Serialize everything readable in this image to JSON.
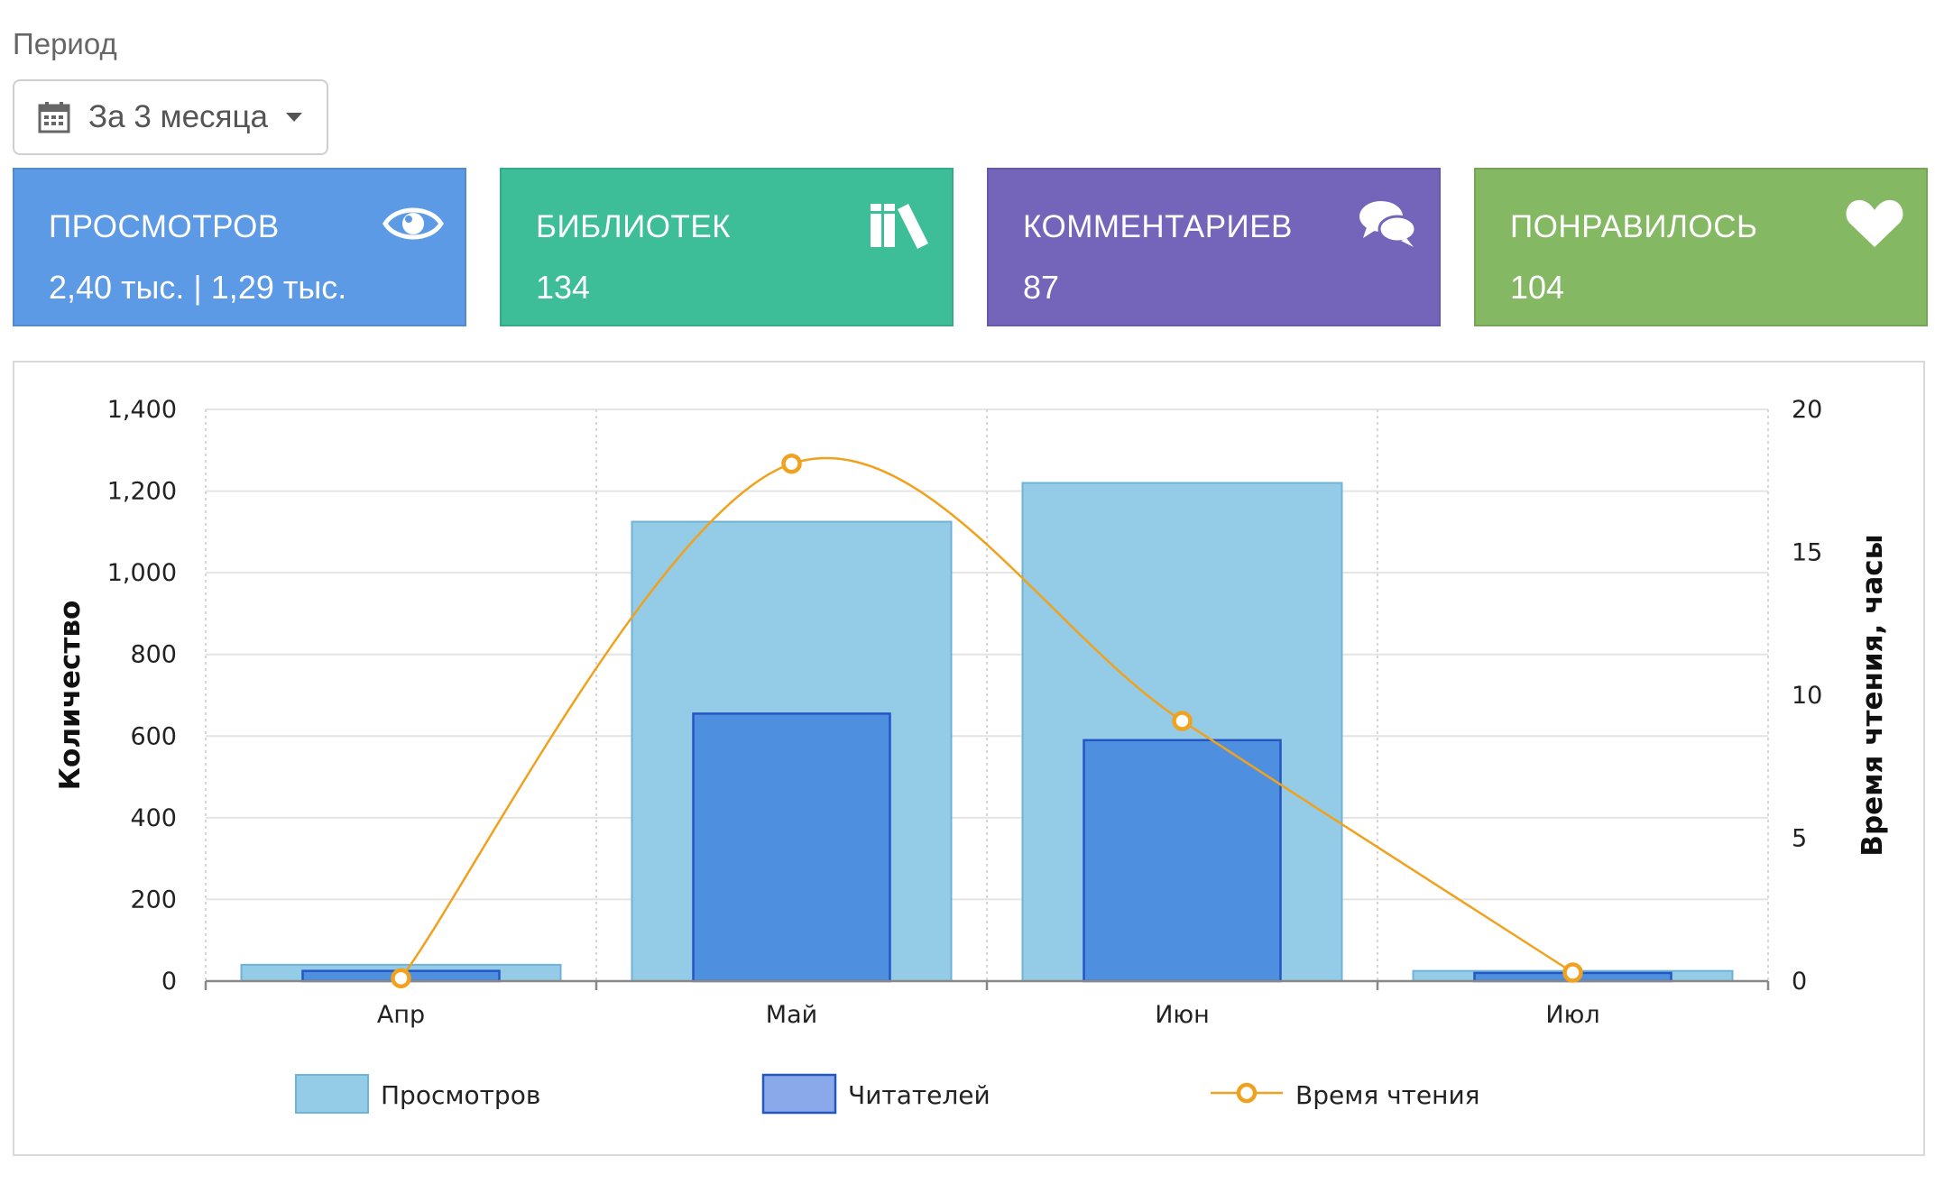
{
  "period": {
    "label": "Период",
    "selected": "За 3 месяца"
  },
  "cards": [
    {
      "title": "ПРОСМОТРОВ",
      "value": "2,40 тыс. | 1,29 тыс.",
      "icon": "eye-icon",
      "color": "#5c9ae6"
    },
    {
      "title": "БИБЛИОТЕК",
      "value": "134",
      "icon": "books-icon",
      "color": "#3dbd98"
    },
    {
      "title": "КОММЕНТАРИЕВ",
      "value": "87",
      "icon": "comments-icon",
      "color": "#7465bb"
    },
    {
      "title": "ПОНРАВИЛОСЬ",
      "value": "104",
      "icon": "heart-icon",
      "color": "#85b863"
    }
  ],
  "chart_data": {
    "type": "bar",
    "categories": [
      "Апр",
      "Май",
      "Июн",
      "Июл"
    ],
    "series": [
      {
        "name": "Просмотров",
        "type": "bar",
        "axis": "left",
        "values": [
          40,
          1125,
          1220,
          25
        ],
        "color": "#94cbe6"
      },
      {
        "name": "Читателей",
        "type": "bar",
        "axis": "left",
        "values": [
          25,
          655,
          590,
          20
        ],
        "color": "#4f8fdf"
      },
      {
        "name": "Время чтения",
        "type": "line",
        "axis": "right",
        "values": [
          0.1,
          18.1,
          9.1,
          0.3
        ],
        "color": "#f0a21e"
      }
    ],
    "ylabel": "Количество",
    "y2label": "Время чтения, часы",
    "ylim": [
      0,
      1400
    ],
    "y2lim": [
      0,
      20
    ],
    "yticks": [
      "0",
      "200",
      "400",
      "600",
      "800",
      "1,000",
      "1,200",
      "1,400"
    ],
    "y2ticks": [
      "0",
      "5",
      "10",
      "15",
      "20"
    ],
    "grid": true,
    "legend": "bottom"
  }
}
